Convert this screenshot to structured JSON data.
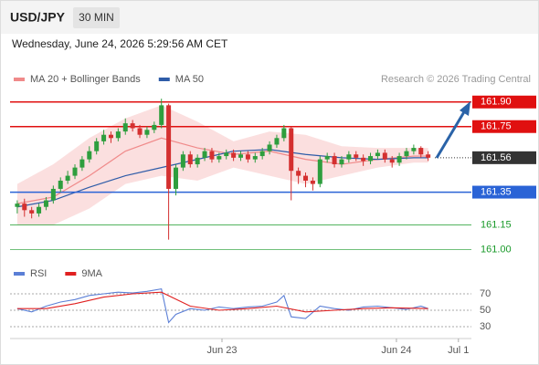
{
  "header": {
    "symbol": "USD/JPY",
    "interval": "30 MIN",
    "datetime": "Wednesday, June 24, 2026 5:29:56 AM CET",
    "credit": "Research © 2026 Trading Central"
  },
  "chart_data": [
    {
      "type": "candlestick",
      "up_color": "#2e9e3e",
      "down_color": "#d43030",
      "xlim": [
        -1,
        63
      ],
      "ylim": [
        160.93,
        161.96
      ],
      "open": [
        161.26,
        161.28,
        161.24,
        161.22,
        161.26,
        161.3,
        161.37,
        161.42,
        161.45,
        161.5,
        161.55,
        161.6,
        161.66,
        161.7,
        161.68,
        161.72,
        161.77,
        161.74,
        161.7,
        161.73,
        161.76,
        161.88,
        161.37,
        161.5,
        161.58,
        161.52,
        161.56,
        161.6,
        161.55,
        161.57,
        161.59,
        161.56,
        161.58,
        161.55,
        161.57,
        161.6,
        161.64,
        161.68,
        161.74,
        161.48,
        161.45,
        161.42,
        161.4,
        161.55,
        161.57,
        161.52,
        161.55,
        161.58,
        161.56,
        161.54,
        161.57,
        161.59,
        161.55,
        161.53,
        161.57,
        161.6,
        161.62,
        161.58
      ],
      "high": [
        161.3,
        161.31,
        161.26,
        161.28,
        161.32,
        161.39,
        161.44,
        161.48,
        161.52,
        161.57,
        161.63,
        161.68,
        161.73,
        161.72,
        161.74,
        161.8,
        161.79,
        161.76,
        161.75,
        161.78,
        161.92,
        161.89,
        161.52,
        161.6,
        161.6,
        161.58,
        161.62,
        161.62,
        161.59,
        161.61,
        161.61,
        161.6,
        161.6,
        161.59,
        161.62,
        161.66,
        161.7,
        161.76,
        161.75,
        161.5,
        161.47,
        161.44,
        161.57,
        161.59,
        161.59,
        161.57,
        161.6,
        161.6,
        161.58,
        161.59,
        161.61,
        161.61,
        161.57,
        161.59,
        161.62,
        161.64,
        161.63,
        161.6
      ],
      "low": [
        161.22,
        161.2,
        161.19,
        161.2,
        161.24,
        161.28,
        161.35,
        161.4,
        161.43,
        161.48,
        161.53,
        161.58,
        161.64,
        161.65,
        161.66,
        161.7,
        161.72,
        161.68,
        161.68,
        161.71,
        161.74,
        161.06,
        161.33,
        161.48,
        161.5,
        161.5,
        161.54,
        161.53,
        161.53,
        161.55,
        161.54,
        161.54,
        161.53,
        161.53,
        161.55,
        161.58,
        161.62,
        161.66,
        161.3,
        161.4,
        161.38,
        161.36,
        161.38,
        161.53,
        161.5,
        161.5,
        161.53,
        161.54,
        161.51,
        161.52,
        161.55,
        161.53,
        161.5,
        161.51,
        161.55,
        161.58,
        161.56,
        161.54
      ],
      "close": [
        161.28,
        161.24,
        161.22,
        161.26,
        161.3,
        161.37,
        161.42,
        161.45,
        161.5,
        161.55,
        161.6,
        161.66,
        161.7,
        161.68,
        161.72,
        161.77,
        161.74,
        161.7,
        161.73,
        161.76,
        161.88,
        161.37,
        161.5,
        161.58,
        161.52,
        161.56,
        161.6,
        161.55,
        161.57,
        161.59,
        161.56,
        161.58,
        161.55,
        161.57,
        161.6,
        161.64,
        161.68,
        161.74,
        161.48,
        161.45,
        161.42,
        161.4,
        161.55,
        161.57,
        161.52,
        161.55,
        161.58,
        161.56,
        161.54,
        161.57,
        161.59,
        161.55,
        161.53,
        161.57,
        161.6,
        161.62,
        161.58,
        161.56
      ],
      "overlays": [
        {
          "name": "MA 20 + Bollinger Bands",
          "color": "#f08a8a",
          "band_color": "rgba(240,140,140,0.28)",
          "x": [
            0,
            5,
            10,
            15,
            20,
            25,
            30,
            35,
            40,
            45,
            50,
            55,
            57
          ],
          "values": [
            161.28,
            161.32,
            161.45,
            161.6,
            161.68,
            161.62,
            161.58,
            161.6,
            161.55,
            161.52,
            161.55,
            161.57,
            161.57
          ],
          "upper": [
            161.4,
            161.52,
            161.68,
            161.8,
            161.88,
            161.78,
            161.66,
            161.72,
            161.7,
            161.63,
            161.62,
            161.62,
            161.62
          ],
          "lower": [
            161.15,
            161.15,
            161.25,
            161.4,
            161.45,
            161.42,
            161.5,
            161.45,
            161.4,
            161.45,
            161.5,
            161.53,
            161.53
          ]
        },
        {
          "name": "MA 50",
          "color": "#2e5ca8",
          "x": [
            0,
            5,
            10,
            15,
            20,
            25,
            30,
            35,
            40,
            45,
            50,
            55,
            57
          ],
          "values": [
            161.26,
            161.3,
            161.38,
            161.45,
            161.5,
            161.55,
            161.6,
            161.61,
            161.58,
            161.56,
            161.55,
            161.56,
            161.56
          ]
        }
      ],
      "levels": [
        {
          "value": 161.9,
          "label": "161.90",
          "color": "#e01010",
          "tag": true,
          "line": "solid"
        },
        {
          "value": 161.75,
          "label": "161.75",
          "color": "#e01010",
          "tag": true,
          "line": "solid"
        },
        {
          "value": 161.56,
          "label": "161.56",
          "color": "#333333",
          "tag": true,
          "line": "dotted"
        },
        {
          "value": 161.35,
          "label": "161.35",
          "color": "#2a63d6",
          "tag": true,
          "line": "solid"
        },
        {
          "value": 161.15,
          "label": "161.15",
          "color": "#1a9a2a",
          "tag": false,
          "line": "thin"
        },
        {
          "value": 161.0,
          "label": "161.00",
          "color": "#1a9a2a",
          "tag": false,
          "line": "thin"
        }
      ]
    },
    {
      "type": "line",
      "xlim": [
        -1,
        63
      ],
      "ylim": [
        20,
        80
      ],
      "yticks": [
        70,
        50,
        30
      ],
      "xticks": [
        {
          "value": 28.4,
          "label": "Jun 23"
        },
        {
          "value": 52.6,
          "label": "Jun 24"
        },
        {
          "value": 61.2,
          "label": "Jul 1"
        }
      ],
      "series": [
        {
          "name": "RSI",
          "color": "#5b7fd6",
          "x": [
            0,
            2,
            4,
            6,
            8,
            10,
            12,
            14,
            16,
            18,
            20,
            21,
            22,
            24,
            26,
            28,
            30,
            32,
            34,
            36,
            37,
            38,
            40,
            42,
            44,
            46,
            48,
            50,
            52,
            54,
            56,
            57
          ],
          "values": [
            52,
            48,
            55,
            60,
            63,
            68,
            70,
            72,
            71,
            73,
            76,
            35,
            45,
            52,
            50,
            54,
            52,
            54,
            55,
            60,
            68,
            42,
            40,
            55,
            52,
            50,
            54,
            55,
            53,
            51,
            55,
            52
          ]
        },
        {
          "name": "9MA",
          "color": "#e02020",
          "x": [
            0,
            4,
            8,
            12,
            16,
            20,
            24,
            28,
            32,
            36,
            40,
            44,
            48,
            52,
            57
          ],
          "values": [
            52,
            52,
            58,
            66,
            70,
            72,
            55,
            50,
            52,
            55,
            48,
            50,
            52,
            53,
            52
          ]
        }
      ]
    }
  ]
}
